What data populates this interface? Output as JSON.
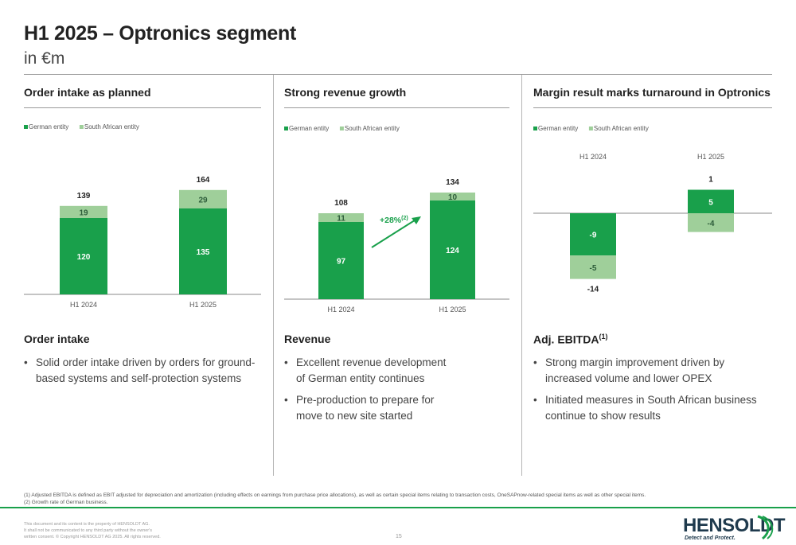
{
  "header": {
    "title": "H1 2025 – Optronics segment",
    "subtitle": "in €m"
  },
  "panels": [
    {
      "heading": "Order intake as planned",
      "section_title": "Order intake",
      "bullets": [
        "Solid order intake driven by orders for ground-based systems and self-protection systems"
      ]
    },
    {
      "heading": "Strong revenue growth",
      "section_title": "Revenue",
      "bullets": [
        "Excellent revenue development of German entity continues",
        "Pre-production to  prepare for move to new site started"
      ]
    },
    {
      "heading": "Margin result marks turnaround in Optronics",
      "section_title": "Adj.  EBITDA",
      "section_title_sup": "(1)",
      "bullets": [
        "Strong margin improvement driven by increased volume and lower OPEX",
        "Initiated measures in South African business continue to show results"
      ]
    }
  ],
  "colors": {
    "german": "#19a04b",
    "south_african": "#9fcf9a",
    "growth_arrow": "#19a04b",
    "accent_line": "#19a04b",
    "logo": "#1f3a4d"
  },
  "chart_data": [
    {
      "type": "bar",
      "stacked": true,
      "categories": [
        "H1 2024",
        "H1 2025"
      ],
      "series": [
        {
          "name": "German entity",
          "values": [
            120,
            135
          ]
        },
        {
          "name": "South African entity",
          "values": [
            19,
            29
          ]
        }
      ],
      "totals": [
        139,
        164
      ],
      "legend_position": "top-left",
      "ylim": [
        0,
        164
      ],
      "grid": false
    },
    {
      "type": "bar",
      "stacked": true,
      "categories": [
        "H1 2024",
        "H1 2025"
      ],
      "series": [
        {
          "name": "German entity",
          "values": [
            97,
            124
          ]
        },
        {
          "name": "South African entity",
          "values": [
            11,
            10
          ]
        }
      ],
      "totals": [
        108,
        134
      ],
      "annotation": {
        "text": "+28%",
        "sup": "(2)"
      },
      "legend_position": "top-left",
      "ylim": [
        0,
        134
      ],
      "grid": false
    },
    {
      "type": "bar",
      "stacked": true,
      "categories": [
        "H1 2024",
        "H1 2025"
      ],
      "series": [
        {
          "name": "German entity",
          "values": [
            -9,
            5
          ]
        },
        {
          "name": "South African entity",
          "values": [
            -5,
            -4
          ]
        }
      ],
      "totals": [
        -14,
        1
      ],
      "legend_position": "top-left",
      "ylim": [
        -14,
        5
      ],
      "grid": false
    }
  ],
  "footnotes": [
    "(1) Adjusted EBITDA is defined as EBIT adjusted for depreciation and amortization (including effects on earnings from purchase price allocations), as well as certain special items relating to transaction costs, OneSAPnow-related special items as well as other special items.",
    "(2) Growth rate of German business."
  ],
  "legal": [
    "This document and its content is the property of HENSOLDT AG.",
    "It shall not be communicated to any third party without the owner's",
    "written consent. © Copyright HENSOLDT AG 2025. All rights reserved."
  ],
  "page_number": "15",
  "logo": {
    "name": "HENSOLDT",
    "tagline": "Detect and Protect."
  }
}
